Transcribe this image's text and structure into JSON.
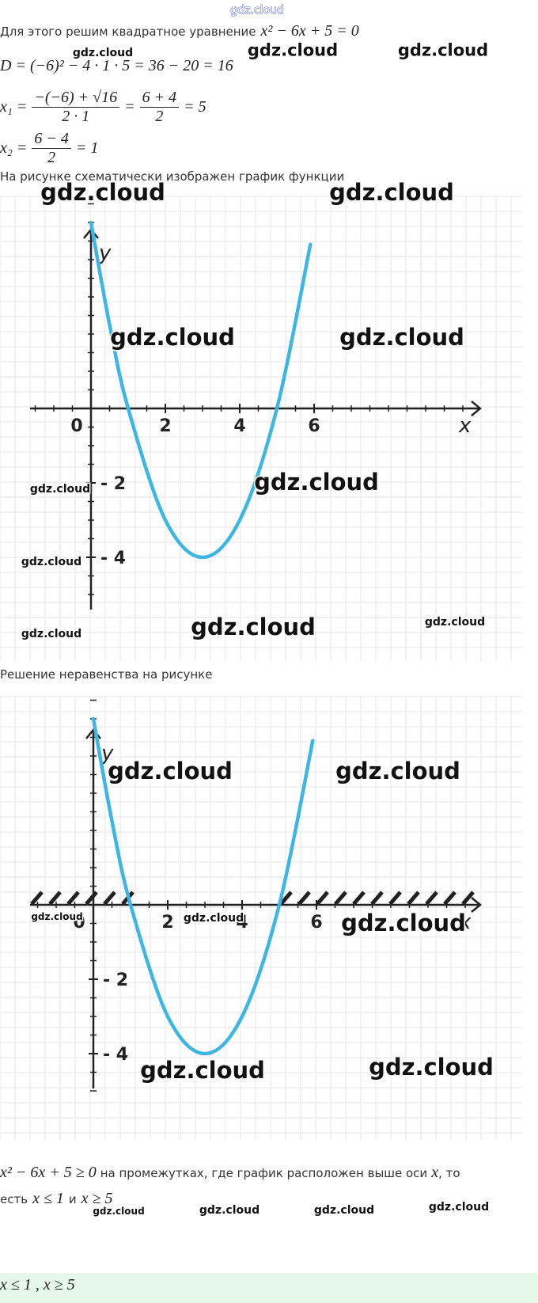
{
  "solution": {
    "intro": "Для этого решим квадратное уравнение",
    "equation": "x² − 6x + 5 = 0",
    "discriminant": "D = (−6)² − 4 · 1 · 5 = 36 − 20 = 16",
    "x1": {
      "lhs": "x₁ =",
      "frac1": {
        "num": "−(−6) + √16",
        "den": "2 · 1"
      },
      "eq": "=",
      "frac2": {
        "num": "6 + 4",
        "den": "2"
      },
      "result": "= 5"
    },
    "x2": {
      "lhs": "x₂ =",
      "frac": {
        "num": "6 − 4",
        "den": "2"
      },
      "result": "= 1"
    }
  },
  "graph_caption": "На рисунке схематически изображен график функции",
  "graph1": {
    "x_label": "x",
    "y_label": "y",
    "xticks": [
      0,
      2,
      4,
      6
    ],
    "yticks": [
      {
        "value": -2,
        "label": "- 2"
      },
      {
        "value": -4,
        "label": "- 4"
      }
    ],
    "curve": {
      "x": [
        0,
        0.5,
        1,
        2,
        3,
        4,
        5,
        5.9
      ],
      "y": [
        5,
        2.25,
        0,
        -3,
        -4,
        -3,
        0,
        4.41
      ]
    }
  },
  "inequality_caption": "Решение неравенства на рисунке",
  "graph2": {
    "x_label": "x",
    "y_label": "y",
    "xticks": [
      0,
      2,
      4,
      6
    ],
    "yticks": [
      {
        "value": -2,
        "label": "- 2"
      },
      {
        "value": -4,
        "label": "- 4"
      }
    ],
    "curve": {
      "x": [
        0,
        0.5,
        1,
        2,
        3,
        4,
        5,
        5.9
      ],
      "y": [
        5,
        2.25,
        0,
        -3,
        -4,
        -3,
        0,
        4.41
      ]
    }
  },
  "conclusion": {
    "inequality": "x² − 6x + 5 ≥ 0",
    "text1": "на промежутках, где график расположен выше оси",
    "axis": "x",
    "text2": ", то",
    "line2_start": "есть",
    "cond1": "x ≤ 1",
    "and": "и",
    "cond2": "x ≥ 5"
  },
  "answer": "x ≤ 1 , x ≥ 5",
  "watermarks": [
    "gdz.cloud",
    "gdz.cloud",
    "gdz.cloud",
    "gdz.cloud",
    "gdz.cloud",
    "gdz.cloud",
    "gdz.cloud",
    "gdz.cloud",
    "gdz.cloud",
    "gdz.cloud",
    "gdz.cloud",
    "gdz.cloud",
    "gdz.cloud",
    "gdz.cloud",
    "gdz.cloud",
    "gdz.cloud",
    "gdz.cloud",
    "gdz.cloud",
    "gdz.cloud",
    "gdz.cloud",
    "gdz.cloud",
    "gdz.cloud",
    "gdz.cloud",
    "gdz.cloud",
    "gdz.cloud"
  ]
}
